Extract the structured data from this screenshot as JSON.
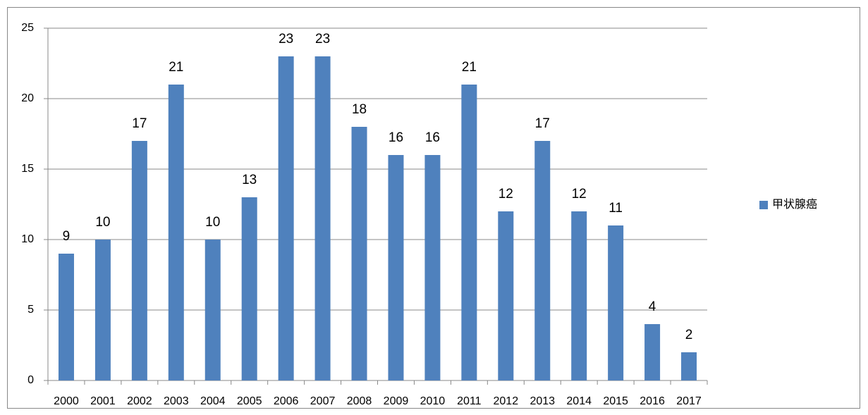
{
  "chart_data": {
    "type": "bar",
    "categories": [
      "2000",
      "2001",
      "2002",
      "2003",
      "2004",
      "2005",
      "2006",
      "2007",
      "2008",
      "2009",
      "2010",
      "2011",
      "2012",
      "2013",
      "2014",
      "2015",
      "2016",
      "2017"
    ],
    "series": [
      {
        "name": "甲状腺癌",
        "color": "#4f81bd",
        "values": [
          9,
          10,
          17,
          21,
          10,
          13,
          23,
          23,
          18,
          16,
          16,
          21,
          12,
          17,
          12,
          11,
          4,
          2
        ]
      }
    ],
    "ylim": [
      0,
      25
    ],
    "yticks": [
      0,
      5,
      10,
      15,
      20,
      25
    ],
    "grid": true,
    "legend": "right"
  }
}
